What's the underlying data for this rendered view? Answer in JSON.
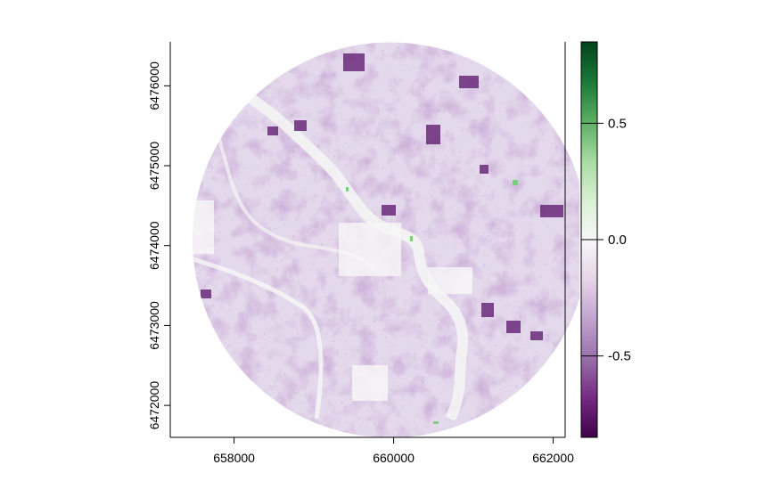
{
  "chart_data": {
    "type": "heatmap",
    "title": "",
    "xlabel": "",
    "ylabel": "",
    "xlim": [
      657200,
      662150
    ],
    "ylim": [
      6471600,
      6476550
    ],
    "x_ticks": [
      {
        "value": 658000,
        "label": "658000"
      },
      {
        "value": 660000,
        "label": "660000"
      },
      {
        "value": 662000,
        "label": "662000"
      }
    ],
    "y_ticks": [
      {
        "value": 6472000,
        "label": "6472000"
      },
      {
        "value": 6473000,
        "label": "6473000"
      },
      {
        "value": 6474000,
        "label": "6474000"
      },
      {
        "value": 6475000,
        "label": "6475000"
      },
      {
        "value": 6476000,
        "label": "6476000"
      }
    ],
    "raster_extent": {
      "shape": "circle",
      "center": [
        659960,
        6474070
      ],
      "radius": 2480
    },
    "value_range": [
      -0.85,
      0.85
    ],
    "colorbar": {
      "palette": [
        "#40004b",
        "#762a83",
        "#9970ab",
        "#c2a5cf",
        "#e7d4e8",
        "#f7f7f7",
        "#d9f0d3",
        "#a6dba0",
        "#5aae61",
        "#1b7837",
        "#00441b"
      ],
      "ticks": [
        {
          "value": 0.5,
          "label": "0.5"
        },
        {
          "value": 0.0,
          "label": "0.0"
        },
        {
          "value": -0.5,
          "label": "-0.5"
        }
      ]
    }
  }
}
